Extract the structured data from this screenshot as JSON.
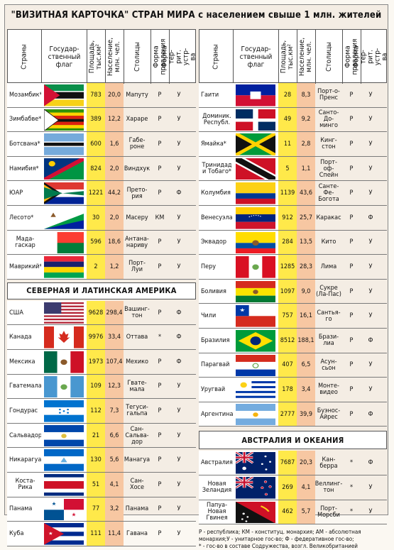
{
  "title": "\"ВИЗИТНАЯ КАРТОЧКА\" СТРАН МИРА с населением свыше 1 млн. жителей",
  "headers": {
    "country": "Страны",
    "flag": "Государ-ственный флаг",
    "area": "Площадь, тыс.км²",
    "population": "Население, млн. чел.",
    "capital": "Столицы",
    "government": "Форма правления",
    "structure": "Форма тер-рит. устр-ва"
  },
  "sections": {
    "americas": "СЕВЕРНАЯ И ЛАТИНСКАЯ АМЕРИКА",
    "oceania": "АВСТРАЛИЯ И ОКЕАНИЯ"
  },
  "left_africa": [
    {
      "name": "Мозамбик*",
      "area": "783",
      "pop": "20,0",
      "capital": "Мапуту",
      "gov": "Р",
      "terr": "У"
    },
    {
      "name": "Зимбабве*",
      "area": "389",
      "pop": "12,2",
      "capital": "Хараре",
      "gov": "Р",
      "terr": "У"
    },
    {
      "name": "Ботсвана*",
      "area": "600",
      "pop": "1,6",
      "capital": "Габе-роне",
      "gov": "Р",
      "terr": "У"
    },
    {
      "name": "Намибия*",
      "area": "824",
      "pop": "2,0",
      "capital": "Виндхук",
      "gov": "Р",
      "terr": "У"
    },
    {
      "name": "ЮАР",
      "area": "1221",
      "pop": "44,2",
      "capital": "Прето-рия",
      "gov": "Р",
      "terr": "Ф"
    },
    {
      "name": "Лесото*",
      "area": "30",
      "pop": "2,0",
      "capital": "Масеру",
      "gov": "КМ",
      "terr": "У"
    },
    {
      "name": "Мада-гаскар",
      "area": "596",
      "pop": "18,6",
      "capital": "Антана-нариву",
      "gov": "Р",
      "terr": "У"
    },
    {
      "name": "Маврикий*",
      "area": "2",
      "pop": "1,2",
      "capital": "Порт-Луи",
      "gov": "Р",
      "terr": "У"
    }
  ],
  "left_americas": [
    {
      "name": "США",
      "area": "9628",
      "pop": "298,4",
      "capital": "Вашинг-тон",
      "gov": "Р",
      "terr": "Ф"
    },
    {
      "name": "Канада",
      "area": "9976",
      "pop": "33,4",
      "capital": "Оттава",
      "gov": "*",
      "terr": "Ф"
    },
    {
      "name": "Мексика",
      "area": "1973",
      "pop": "107,4",
      "capital": "Мехико",
      "gov": "Р",
      "terr": "Ф"
    },
    {
      "name": "Гватемала",
      "area": "109",
      "pop": "12,3",
      "capital": "Гвате-мала",
      "gov": "Р",
      "terr": "У"
    },
    {
      "name": "Гондурас",
      "area": "112",
      "pop": "7,3",
      "capital": "Тегуси-гальпа",
      "gov": "Р",
      "terr": "У"
    },
    {
      "name": "Сальвадор",
      "area": "21",
      "pop": "6,6",
      "capital": "Сан-Сальва-дор",
      "gov": "Р",
      "terr": "У"
    },
    {
      "name": "Никарагуа",
      "area": "130",
      "pop": "5,6",
      "capital": "Манагуа",
      "gov": "Р",
      "terr": "У"
    },
    {
      "name": "Коста-Рика",
      "area": "51",
      "pop": "4,1",
      "capital": "Сан-Хосе",
      "gov": "Р",
      "terr": "У"
    },
    {
      "name": "Панама",
      "area": "77",
      "pop": "3,2",
      "capital": "Панама",
      "gov": "Р",
      "terr": "У"
    },
    {
      "name": "Куба",
      "area": "111",
      "pop": "11,4",
      "capital": "Гавана",
      "gov": "Р",
      "terr": "У"
    }
  ],
  "right_americas": [
    {
      "name": "Гаити",
      "area": "28",
      "pop": "8,3",
      "capital": "Порт-о-Пренс",
      "gov": "Р",
      "terr": "У"
    },
    {
      "name": "Доминик. Республ.",
      "area": "49",
      "pop": "9,2",
      "capital": "Санто-До-минго",
      "gov": "Р",
      "terr": "У"
    },
    {
      "name": "Ямайка*",
      "area": "11",
      "pop": "2,8",
      "capital": "Кинг-стон",
      "gov": "Р",
      "terr": "У"
    },
    {
      "name": "Тринидад и Тобаго*",
      "area": "5",
      "pop": "1,1",
      "capital": "Порт-оф-Спейн",
      "gov": "Р",
      "terr": "У"
    },
    {
      "name": "Колумбия",
      "area": "1139",
      "pop": "43,6",
      "capital": "Санте-Фе-Богота",
      "gov": "Р",
      "terr": "У"
    },
    {
      "name": "Венесуэла",
      "area": "912",
      "pop": "25,7",
      "capital": "Каракас",
      "gov": "Р",
      "terr": "Ф"
    },
    {
      "name": "Эквадор",
      "area": "284",
      "pop": "13,5",
      "capital": "Кито",
      "gov": "Р",
      "terr": "У"
    },
    {
      "name": "Перу",
      "area": "1285",
      "pop": "28,3",
      "capital": "Лима",
      "gov": "Р",
      "terr": "У"
    },
    {
      "name": "Боливия",
      "area": "1097",
      "pop": "9,0",
      "capital": "Сукре (Ла-Пас)",
      "gov": "Р",
      "terr": "У"
    },
    {
      "name": "Чили",
      "area": "757",
      "pop": "16,1",
      "capital": "Сантья-го",
      "gov": "Р",
      "terr": "У"
    },
    {
      "name": "Бразилия",
      "area": "8512",
      "pop": "188,1",
      "capital": "Брази-лиа",
      "gov": "Р",
      "terr": "Ф"
    },
    {
      "name": "Парагвай",
      "area": "407",
      "pop": "6,5",
      "capital": "Асун-сьон",
      "gov": "Р",
      "terr": "У"
    },
    {
      "name": "Уругвай",
      "area": "178",
      "pop": "3,4",
      "capital": "Монте-видео",
      "gov": "Р",
      "terr": "У"
    },
    {
      "name": "Аргентина",
      "area": "2777",
      "pop": "39,9",
      "capital": "Буэнос-Айрес",
      "gov": "Р",
      "terr": "Ф"
    }
  ],
  "right_oceania": [
    {
      "name": "Австралия",
      "area": "7687",
      "pop": "20,3",
      "capital": "Кан-берра",
      "gov": "*",
      "terr": "Ф"
    },
    {
      "name": "Новая Зеландия",
      "area": "269",
      "pop": "4,1",
      "capital": "Веллинг-тон",
      "gov": "*",
      "terr": "У"
    },
    {
      "name": "Папуа-Новая Гвинея",
      "area": "462",
      "pop": "5,7",
      "capital": "Порт-Морсби",
      "gov": "*",
      "terr": "У"
    }
  ],
  "legend": [
    "Р - республика; КМ - конституц. монархия; АМ - абсолютная",
    "монархия;У - унитарное гос-во; Ф - федеративное гос-во;",
    "* - гос-во в составе Содружества, возгл. Великобританией"
  ],
  "colors": {
    "area": "#ffe94a",
    "population": "#f7c7a2",
    "capital": "#eadcf3",
    "government": "#e4966a",
    "monarchy": "#3b8fd3",
    "structure": "#aa89de"
  }
}
